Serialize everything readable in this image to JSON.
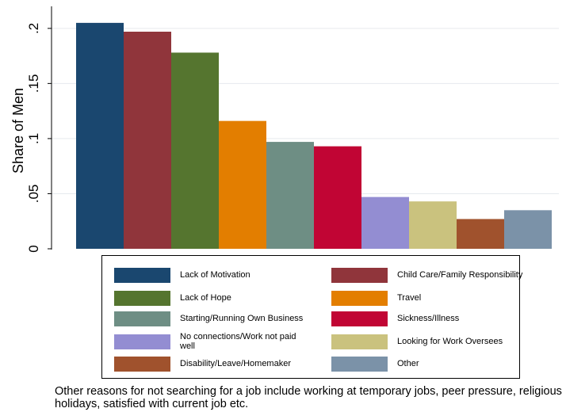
{
  "chart_data": {
    "type": "bar",
    "ylabel": "Share of Men",
    "ylim": [
      0,
      0.22
    ],
    "yticks": [
      0,
      0.05,
      0.1,
      0.15,
      0.2
    ],
    "ytick_labels": [
      "0",
      ".05",
      ".1",
      ".15",
      ".2"
    ],
    "grid": true,
    "legend_position": "bottom",
    "series": [
      {
        "name": "Lack of Motivation",
        "value": 0.205,
        "color": "#1a476f"
      },
      {
        "name": "Child Care/Family Responsibility",
        "value": 0.197,
        "color": "#90353b"
      },
      {
        "name": "Lack of Hope",
        "value": 0.178,
        "color": "#55752f"
      },
      {
        "name": "Travel",
        "value": 0.116,
        "color": "#e37e00"
      },
      {
        "name": "Starting/Running Own Business",
        "value": 0.097,
        "color": "#6e8e84"
      },
      {
        "name": "Sickness/Illness",
        "value": 0.093,
        "color": "#c10534"
      },
      {
        "name": "No connections/Work not paid well",
        "value": 0.047,
        "color": "#938dd2"
      },
      {
        "name": "Looking for Work Oversees",
        "value": 0.043,
        "color": "#cac27e"
      },
      {
        "name": "Disability/Leave/Homemaker",
        "value": 0.027,
        "color": "#a0522d"
      },
      {
        "name": "Other",
        "value": 0.035,
        "color": "#7b92a8"
      }
    ]
  },
  "note": "Other reasons for not searching for a job include working at temporary jobs, peer pressure, religious holidays, satisfied with current job etc."
}
